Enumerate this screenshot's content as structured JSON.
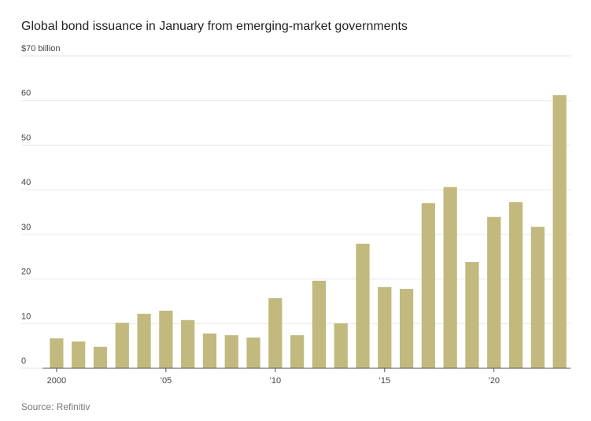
{
  "chart_data": {
    "type": "bar",
    "title": "Global bond issuance in January from emerging-market governments",
    "source": "Source: Refinitiv",
    "categories": [
      "2000",
      null,
      null,
      null,
      null,
      "’05",
      null,
      null,
      null,
      null,
      "’10",
      null,
      null,
      null,
      null,
      "’15",
      null,
      null,
      null,
      null,
      "’20",
      null,
      null,
      null
    ],
    "values": [
      6.7,
      6.0,
      4.8,
      10.2,
      12.2,
      12.9,
      10.8,
      7.8,
      7.4,
      6.9,
      15.7,
      7.4,
      19.6,
      10.1,
      27.9,
      18.2,
      17.8,
      37.0,
      40.6,
      23.8,
      33.9,
      37.2,
      31.7,
      61.2
    ],
    "color": "#c2b97e",
    "ylim": [
      0,
      70
    ],
    "yticks": [
      0,
      10,
      20,
      30,
      40,
      50,
      60,
      {
        "value": 70,
        "label": "$70 billion"
      }
    ],
    "grid": true
  }
}
